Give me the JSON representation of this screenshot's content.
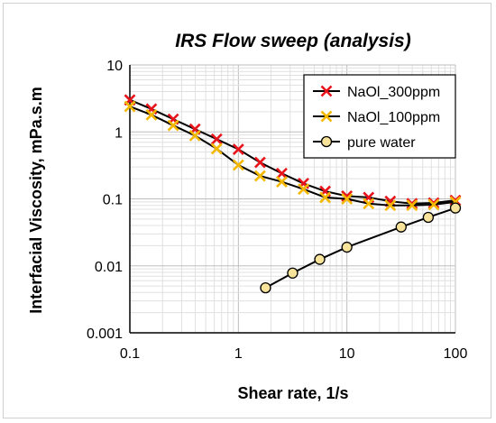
{
  "chart_data": {
    "type": "line",
    "title": "IRS Flow sweep (analysis)",
    "xlabel": "Shear rate, 1/s",
    "ylabel": "Interfacial Viscosity, mPa.s.m",
    "xscale": "log",
    "yscale": "log",
    "xlim": [
      0.1,
      100
    ],
    "ylim": [
      0.001,
      10
    ],
    "x_tick_labels": [
      "0.1",
      "1",
      "10",
      "100"
    ],
    "y_tick_labels": [
      "0.001",
      "0.01",
      "0.1",
      "1",
      "10"
    ],
    "grid": true,
    "legend_position": "top-right",
    "series": [
      {
        "name": "NaOl_300ppm",
        "color": "#e8141b",
        "marker": "x",
        "x": [
          0.1,
          0.158,
          0.251,
          0.398,
          0.631,
          1.0,
          1.585,
          2.512,
          3.981,
          6.31,
          10.0,
          15.85,
          25.12,
          39.81,
          63.1,
          100.0
        ],
        "y": [
          3.0,
          2.2,
          1.55,
          1.1,
          0.78,
          0.55,
          0.35,
          0.24,
          0.17,
          0.13,
          0.11,
          0.105,
          0.092,
          0.085,
          0.087,
          0.095
        ]
      },
      {
        "name": "NaOl_100ppm",
        "color": "#f5b800",
        "marker": "x",
        "x": [
          0.1,
          0.158,
          0.251,
          0.398,
          0.631,
          1.0,
          1.585,
          2.512,
          3.981,
          6.31,
          10.0,
          15.85,
          25.12,
          39.81,
          63.1,
          100.0
        ],
        "y": [
          2.4,
          1.8,
          1.25,
          0.88,
          0.56,
          0.32,
          0.22,
          0.18,
          0.14,
          0.105,
          0.1,
          0.085,
          0.08,
          0.08,
          0.082,
          0.09
        ]
      },
      {
        "name": "pure water",
        "color": "#f7e39a",
        "marker": "circle",
        "x": [
          1.78,
          3.16,
          5.62,
          10.0,
          31.6,
          56.2,
          100.0
        ],
        "y": [
          0.0047,
          0.0078,
          0.0125,
          0.019,
          0.038,
          0.053,
          0.073
        ]
      }
    ]
  }
}
